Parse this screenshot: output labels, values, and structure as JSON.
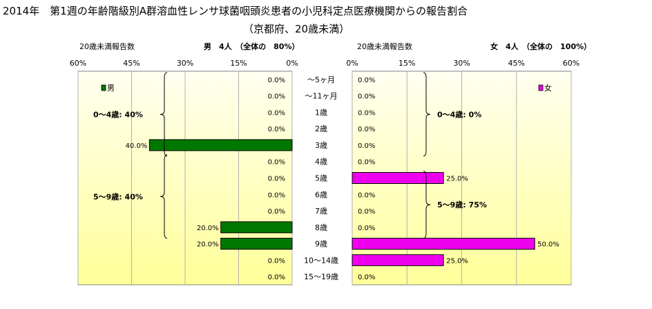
{
  "title": "2014年　第1週の年齢階級別A群溶血性レンサ球菌咽頭炎患者の小児科定点医療機関からの報告割合",
  "subtitle": "（京都府、20歳未満）",
  "colors": {
    "male": "#007700",
    "female": "#ee00ee",
    "plot_gradient_light": "#fffff0",
    "plot_gradient_dark": "#ffff99",
    "gridline": "#b0b0b0",
    "text": "#000000"
  },
  "chart_data": [
    {
      "type": "bar",
      "orientation": "horizontal",
      "direction": "right-to-left",
      "axis_label": "20歳未満報告数",
      "header": "男　4人　（全体の　80%）",
      "legend": "男",
      "legend_position": "top-left",
      "series": [
        {
          "name": "男",
          "values": [
            0,
            0,
            0,
            0,
            40,
            0,
            0,
            0,
            0,
            20,
            20,
            0,
            0
          ]
        }
      ],
      "value_labels": [
        "0.0%",
        "0.0%",
        "0.0%",
        "0.0%",
        "40.0%",
        "0.0%",
        "0.0%",
        "0.0%",
        "0.0%",
        "20.0%",
        "20.0%",
        "0.0%",
        "0.0%"
      ],
      "xlim": [
        0,
        60
      ],
      "ticks": [
        "60%",
        "45%",
        "30%",
        "15%",
        "0%"
      ],
      "tick_values": [
        60,
        45,
        30,
        15,
        0
      ],
      "grid": true,
      "group_annotations": [
        {
          "text": "0～4歳: 40%",
          "from_index": 0,
          "to_index": 5
        },
        {
          "text": "5～9歳: 40%",
          "from_index": 5,
          "to_index": 10
        }
      ]
    },
    {
      "type": "bar",
      "orientation": "horizontal",
      "direction": "left-to-right",
      "axis_label": "20歳未満報告数",
      "header": "女　4人　（全体の　100%）",
      "legend": "女",
      "legend_position": "top-right",
      "series": [
        {
          "name": "女",
          "values": [
            0,
            0,
            0,
            0,
            0,
            0,
            25,
            0,
            0,
            0,
            50,
            25,
            0
          ]
        }
      ],
      "value_labels": [
        "0.0%",
        "0.0%",
        "0.0%",
        "0.0%",
        "0.0%",
        "0.0%",
        "25.0%",
        "0.0%",
        "0.0%",
        "0.0%",
        "50.0%",
        "25.0%",
        "0.0%"
      ],
      "xlim": [
        0,
        60
      ],
      "ticks": [
        "0%",
        "15%",
        "30%",
        "45%",
        "60%"
      ],
      "tick_values": [
        0,
        15,
        30,
        45,
        60
      ],
      "grid": true,
      "group_annotations": [
        {
          "text": "0～4歳: 0%",
          "from_index": 0,
          "to_index": 5
        },
        {
          "text": "5～9歳: 75%",
          "from_index": 6,
          "to_index": 10
        }
      ]
    }
  ],
  "categories": [
    "～5ヶ月",
    "～11ヶ月",
    "1歳",
    "2歳",
    "3歳",
    "4歳",
    "5歳",
    "6歳",
    "7歳",
    "8歳",
    "9歳",
    "10～14歳",
    "15～19歳"
  ]
}
